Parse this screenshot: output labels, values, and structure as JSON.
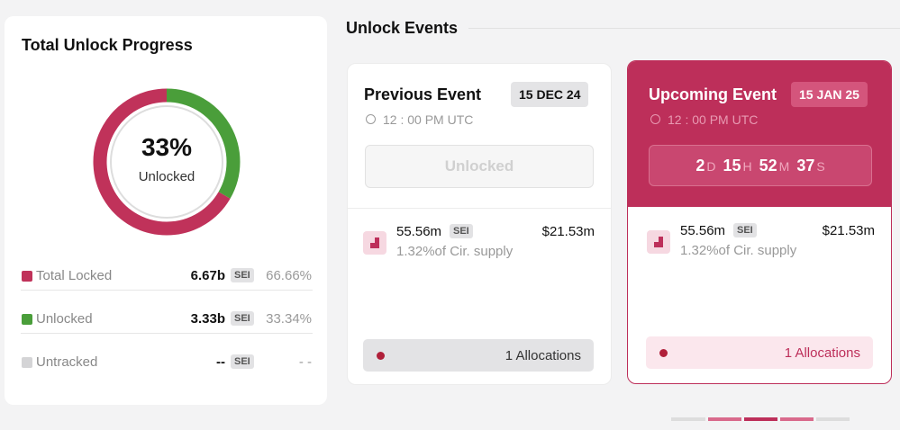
{
  "progress": {
    "title": "Total Unlock Progress",
    "center_value": "33%",
    "center_label": "Unlocked",
    "rows": [
      {
        "name": "Total Locked",
        "color": "#c0325a",
        "amount": "6.67b",
        "token": "SEI",
        "share": 66.66,
        "share_label": "66.66%"
      },
      {
        "name": "Unlocked",
        "color": "#4a9e3a",
        "amount": "3.33b",
        "token": "SEI",
        "share": 33.34,
        "share_label": "33.34%"
      },
      {
        "name": "Untracked",
        "color": "#d4d4d6",
        "amount": "--",
        "token": "SEI",
        "share": null,
        "share_label": "- -"
      }
    ]
  },
  "events": {
    "title": "Unlock Events",
    "previous": {
      "title": "Previous Event",
      "date": "15 DEC 24",
      "time": "12 : 00 PM UTC",
      "status": "Unlocked",
      "amount": "55.56m",
      "token": "SEI",
      "supply": "1.32%of Cir. supply",
      "usd": "$21.53m",
      "allocations": "1 Allocations"
    },
    "upcoming": {
      "title": "Upcoming Event",
      "date": "15 JAN 25",
      "time": "12 : 00 PM UTC",
      "countdown": [
        {
          "value": "2",
          "unit": "D"
        },
        {
          "value": "15",
          "unit": "H"
        },
        {
          "value": "52",
          "unit": "M"
        },
        {
          "value": "37",
          "unit": "S"
        }
      ],
      "amount": "55.56m",
      "token": "SEI",
      "supply": "1.32%of Cir. supply",
      "usd": "$21.53m",
      "allocations": "1 Allocations"
    }
  }
}
